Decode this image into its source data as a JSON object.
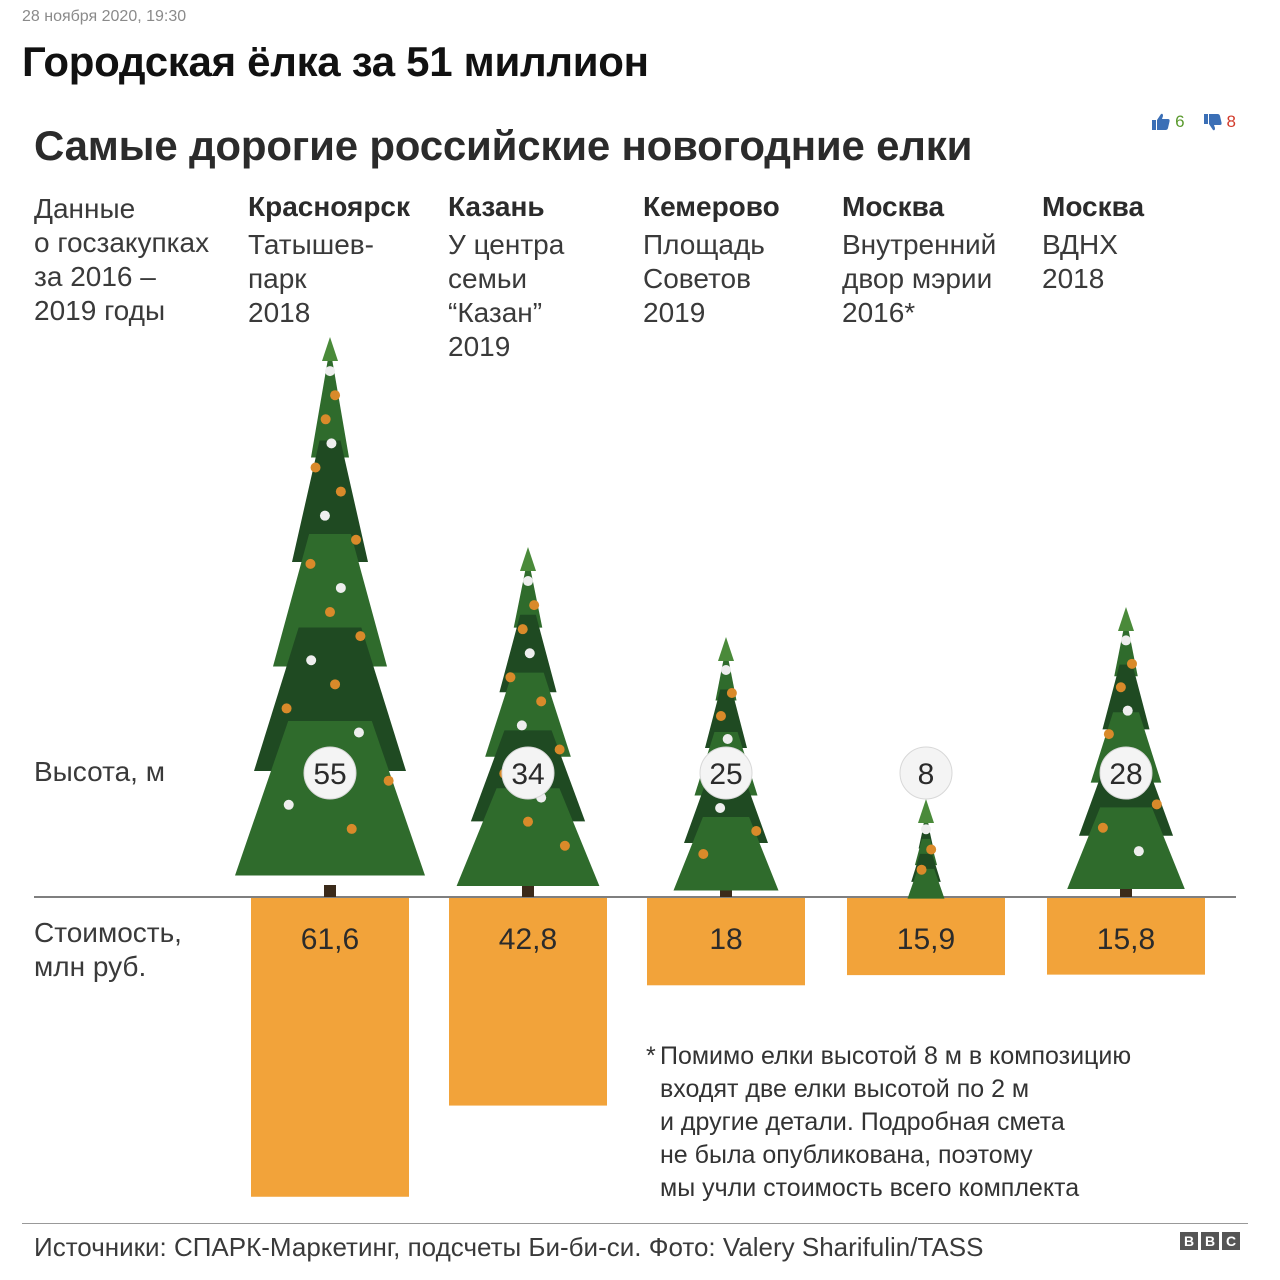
{
  "article": {
    "date": "28 ноября 2020, 19:30",
    "headline": "Городская ёлка за 51 миллион",
    "likes": "6",
    "dislikes": "8"
  },
  "infographic": {
    "title": "Самые дорогие российские новогодние елки",
    "intro_lines": [
      "Данные",
      "о госзакупках",
      "за 2016 –",
      "2019 годы"
    ],
    "height_label": "Высота, м",
    "cost_label_lines": [
      "Стоимость,",
      "млн руб."
    ],
    "footnote_star": "*",
    "footnote_lines": [
      "Помимо елки высотой 8 м в композицию",
      "входят две елки высотой по 2 м",
      "и другие детали. Подробная смета",
      "не была опубликована, поэтому",
      "мы учли стоимость всего комплекта"
    ],
    "source": "Источники: СПАРК-Маркетинг, подсчеты Би-би-си. Фото: Valery Sharifulin/TASS",
    "logo_letters": [
      "B",
      "B",
      "C"
    ]
  },
  "colors": {
    "bar": "#f2a33a",
    "tree_dark": "#1f4a22",
    "tree_mid": "#2f6b2c",
    "tree_light": "#4a8a3a",
    "ornament_gold": "#d98a2a",
    "ornament_white": "#eeeeee",
    "baseline": "#555555"
  },
  "chart_data": {
    "type": "bar",
    "categories": [
      {
        "city": "Красноярск",
        "lines": [
          "Татышев-",
          "парк",
          "2018"
        ]
      },
      {
        "city": "Казань",
        "lines": [
          "У центра",
          "семьи",
          "“Казан”",
          "2019"
        ]
      },
      {
        "city": "Кемерово",
        "lines": [
          "Площадь",
          "Советов",
          "2019"
        ]
      },
      {
        "city": "Москва",
        "lines": [
          "Внутренний",
          "двор мэрии",
          "2016*"
        ]
      },
      {
        "city": "Москва",
        "lines": [
          "ВДНХ",
          "2018"
        ]
      }
    ],
    "series": [
      {
        "name": "Высота, м",
        "values": [
          55,
          34,
          25,
          8,
          28
        ],
        "labels": [
          "55",
          "34",
          "25",
          "8",
          "28"
        ]
      },
      {
        "name": "Стоимость, млн руб.",
        "values": [
          61.6,
          42.8,
          18,
          15.9,
          15.8
        ],
        "labels": [
          "61,6",
          "42,8",
          "18",
          "15,9",
          "15,8"
        ]
      }
    ]
  }
}
